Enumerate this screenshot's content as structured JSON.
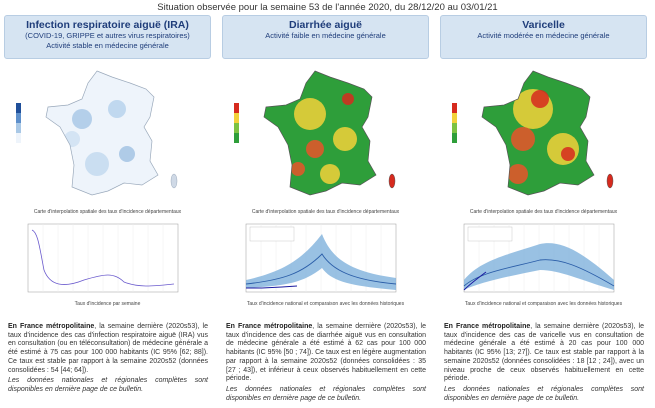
{
  "header": {
    "title": "Situation observée pour la semaine 53 de l'année 2020, du 28/12/20 au 03/01/21"
  },
  "panels": [
    {
      "title": "Infection respiratoire aiguë (IRA)",
      "subtitles": [
        "(COVID-19, GRIPPE et autres virus respiratoires)",
        "Activité stable en médecine générale"
      ],
      "map_caption": "Carte d'interpolation spatiale des taux d'incidence départementaux",
      "chart_caption": "Taux d'incidence par semaine",
      "lead": "En France métropolitaine",
      "text": ", la semaine dernière (2020s53), le taux d'incidence des cas d'infection respiratoire aiguë (IRA) vus en consultation (ou en téléconsultation) de médecine générale a été estimé à 75 cas pour 100 000 habitants (IC 95% [62; 88]). Ce taux est stable par rapport à la semaine 2020s52 (données consolidées : 54 [44; 64]).",
      "note": "Les données nationales et régionales complètes sont disponibles en dernière page de ce bulletin."
    },
    {
      "title": "Diarrhée aiguë",
      "subtitles": [
        "Activité faible en médecine générale"
      ],
      "map_caption": "Carte d'interpolation spatiale des taux d'incidence départementaux",
      "chart_caption": "Taux d'incidence national et comparaison avec les données historiques",
      "lead": "En France métropolitaine",
      "text": ", la semaine dernière (2020s53), le taux d'incidence des cas de diarrhée aiguë vus en consultation de médecine générale a été estimé à 62 cas pour 100 000 habitants (IC 95% [50 ; 74]). Ce taux est en légère augmentation par rapport à la semaine 2020s52 (données consolidées : 35 [27 ; 43]), et inférieur à ceux observés habituellement en cette période.",
      "note": "Les données nationales et régionales complètes sont disponibles en dernière page de ce bulletin."
    },
    {
      "title": "Varicelle",
      "subtitles": [
        "Activité modérée en médecine générale"
      ],
      "map_caption": "Carte d'interpolation spatiale des taux d'incidence départementaux",
      "chart_caption": "Taux d'incidence national et comparaison avec les données historiques",
      "lead": "En France métropolitaine",
      "text": ", la semaine dernière (2020s53), le taux d'incidence des cas de varicelle vus en consultation de médecine générale a été estimé à 20 cas pour 100 000 habitants (IC 95% [13; 27]). Ce taux est stable par rapport à la semaine 2020s52 (données consolidées : 18 [12 ; 24]), avec un niveau proche de ceux observés habituellement en cette période.",
      "note": "Les données nationales et régionales complètes sont disponibles en dernière page de ce bulletin."
    }
  ]
}
